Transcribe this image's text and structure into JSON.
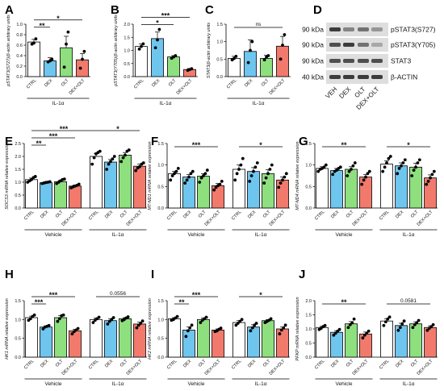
{
  "colors": {
    "CTRL": "#ffffff",
    "DEX": "#6ec6ee",
    "OLT": "#8ee07e",
    "DEX+OLT": "#f27a6c",
    "black": "#000000",
    "blot_bg": "#dedede",
    "band": "#2a2a2a"
  },
  "chart_data": [
    {
      "id": "A",
      "type": "bar",
      "letter": "A",
      "ylabel": "pSTAT3(S727)/β-actin arbitrary units",
      "ylim": [
        0,
        1.0
      ],
      "yticks": [
        0.0,
        0.2,
        0.4,
        0.6,
        0.8,
        1.0
      ],
      "categories": [
        "CTRL",
        "DEX",
        "OLT",
        "DEX+OLT"
      ],
      "values": [
        0.66,
        0.3,
        0.55,
        0.32
      ],
      "errors": [
        0.05,
        0.06,
        0.22,
        0.12
      ],
      "points": [
        [
          0.62,
          0.64,
          0.72
        ],
        [
          0.28,
          0.3,
          0.33
        ],
        [
          0.18,
          0.62,
          0.85
        ],
        [
          0.16,
          0.33,
          0.48
        ]
      ],
      "groups": [
        {
          "label": "IL-1α",
          "from": 0,
          "to": 3
        }
      ],
      "sig": [
        {
          "a": 0,
          "b": 1,
          "text": "**",
          "level": 0
        },
        {
          "a": 0,
          "b": 3,
          "text": "*",
          "level": 1
        }
      ]
    },
    {
      "id": "B",
      "type": "bar",
      "letter": "B",
      "ylabel": "pSTAT3(Y705)/β-actin arbitrary units",
      "ylim": [
        0,
        2.0
      ],
      "yticks": [
        0.0,
        0.5,
        1.0,
        1.5,
        2.0
      ],
      "categories": [
        "CTRL",
        "DEX",
        "OLT",
        "DEX+OLT"
      ],
      "values": [
        1.15,
        1.45,
        0.75,
        0.27
      ],
      "errors": [
        0.1,
        0.25,
        0.05,
        0.04
      ],
      "points": [
        [
          1.05,
          1.15,
          1.25
        ],
        [
          1.1,
          1.4,
          1.8
        ],
        [
          0.7,
          0.75,
          0.8
        ],
        [
          0.24,
          0.27,
          0.3
        ]
      ],
      "groups": [
        {
          "label": "IL-1α",
          "from": 0,
          "to": 3
        }
      ],
      "sig": [
        {
          "a": 0,
          "b": 2,
          "text": "*",
          "level": 0
        },
        {
          "a": 0,
          "b": 3,
          "text": "***",
          "level": 1
        }
      ]
    },
    {
      "id": "C",
      "type": "bar",
      "letter": "C",
      "ylabel": "STAT3/β-actin arbitrary units",
      "ylim": [
        0,
        1.5
      ],
      "yticks": [
        0.0,
        0.5,
        1.0,
        1.5
      ],
      "categories": [
        "CTRL",
        "DEX",
        "OLT",
        "DEX+OLT"
      ],
      "values": [
        0.52,
        0.72,
        0.52,
        0.87
      ],
      "errors": [
        0.06,
        0.33,
        0.09,
        0.28
      ],
      "points": [
        [
          0.48,
          0.52,
          0.58
        ],
        [
          0.4,
          0.75,
          1.0
        ],
        [
          0.48,
          0.56,
          0.6
        ],
        [
          0.5,
          0.9,
          1.2
        ]
      ],
      "groups": [
        {
          "label": "IL-1α",
          "from": 0,
          "to": 3
        }
      ],
      "sig": [
        {
          "a": 0,
          "b": 3,
          "text": "ns",
          "level": 0
        }
      ]
    },
    {
      "id": "E",
      "type": "bar",
      "letter": "E",
      "ylabel": "SOCS3 mRNA relative expression",
      "ylim": [
        0,
        2.5
      ],
      "yticks": [
        0.0,
        0.5,
        1.0,
        1.5,
        2.0,
        2.5
      ],
      "categories": [
        "CTRL",
        "DEX",
        "OLT",
        "DEX+OLT",
        "CTRL",
        "DEX",
        "OLT",
        "DEX+OLT"
      ],
      "values": [
        1.1,
        0.98,
        1.02,
        0.85,
        2.0,
        1.78,
        2.05,
        1.62
      ],
      "errors": [
        0.06,
        0.03,
        0.05,
        0.04,
        0.12,
        0.1,
        0.1,
        0.08
      ],
      "points": [
        [
          1.0,
          1.05,
          1.1,
          1.18,
          1.22
        ],
        [
          0.95,
          0.97,
          0.99,
          1.0,
          1.02
        ],
        [
          0.95,
          1.0,
          1.05,
          1.1,
          1.12
        ],
        [
          0.78,
          0.82,
          0.85,
          0.88,
          0.92
        ],
        [
          1.7,
          1.95,
          2.1,
          2.15,
          2.2
        ],
        [
          1.5,
          1.7,
          1.8,
          1.9,
          2.0
        ],
        [
          1.8,
          1.95,
          2.05,
          2.2,
          2.25
        ],
        [
          1.45,
          1.55,
          1.6,
          1.7,
          1.75
        ]
      ],
      "groups": [
        {
          "label": "Vehicle",
          "from": 0,
          "to": 3
        },
        {
          "label": "IL-1α",
          "from": 4,
          "to": 7
        }
      ],
      "sig": [
        {
          "a": 0,
          "b": 1,
          "text": "**",
          "level": 0
        },
        {
          "a": 0,
          "b": 3,
          "text": "***",
          "level": 1
        },
        {
          "a": 0,
          "b": 4,
          "text": "***",
          "level": 2
        },
        {
          "a": 4,
          "b": 7,
          "text": "*",
          "level": 2
        }
      ]
    },
    {
      "id": "F",
      "type": "bar",
      "letter": "F",
      "ylabel": "MT-ND1 mRNA relative expression",
      "ylim": [
        0,
        1.5
      ],
      "yticks": [
        0.0,
        0.5,
        1.0,
        1.5
      ],
      "categories": [
        "CTRL",
        "DEX",
        "OLT",
        "DEX+OLT",
        "CTRL",
        "DEX",
        "OLT",
        "DEX+OLT"
      ],
      "values": [
        0.8,
        0.72,
        0.74,
        0.52,
        0.9,
        0.85,
        0.8,
        0.65
      ],
      "errors": [
        0.05,
        0.06,
        0.06,
        0.05,
        0.1,
        0.09,
        0.09,
        0.07
      ],
      "points": [
        [
          0.65,
          0.75,
          0.8,
          0.85,
          0.92
        ],
        [
          0.58,
          0.65,
          0.72,
          0.8,
          0.85
        ],
        [
          0.6,
          0.7,
          0.75,
          0.8,
          0.88
        ],
        [
          0.42,
          0.48,
          0.52,
          0.55,
          0.62
        ],
        [
          0.65,
          0.8,
          0.9,
          1.0,
          1.15
        ],
        [
          0.62,
          0.75,
          0.85,
          0.95,
          1.05
        ],
        [
          0.58,
          0.7,
          0.8,
          0.9,
          1.0
        ],
        [
          0.48,
          0.58,
          0.65,
          0.72,
          0.8
        ]
      ],
      "groups": [
        {
          "label": "Vehicle",
          "from": 0,
          "to": 3
        },
        {
          "label": "IL-1α",
          "from": 4,
          "to": 7
        }
      ],
      "sig": [
        {
          "a": 0,
          "b": 3,
          "text": "***",
          "level": 0
        },
        {
          "a": 4,
          "b": 7,
          "text": "*",
          "level": 0
        }
      ]
    },
    {
      "id": "G",
      "type": "bar",
      "letter": "G",
      "ylabel": "MT-ND4 mRNA relative expression",
      "ylim": [
        0,
        1.5
      ],
      "yticks": [
        0.0,
        0.5,
        1.0,
        1.5
      ],
      "categories": [
        "CTRL",
        "DEX",
        "OLT",
        "DEX+OLT",
        "CTRL",
        "DEX",
        "OLT",
        "DEX+OLT"
      ],
      "values": [
        0.92,
        0.87,
        0.9,
        0.72,
        1.02,
        0.98,
        0.95,
        0.7
      ],
      "errors": [
        0.04,
        0.05,
        0.06,
        0.06,
        0.08,
        0.07,
        0.09,
        0.07
      ],
      "points": [
        [
          0.85,
          0.9,
          0.92,
          0.95,
          1.0
        ],
        [
          0.78,
          0.85,
          0.88,
          0.92,
          0.95
        ],
        [
          0.75,
          0.85,
          0.9,
          0.98,
          1.05
        ],
        [
          0.55,
          0.65,
          0.72,
          0.8,
          0.85
        ],
        [
          0.85,
          0.95,
          1.05,
          1.15,
          1.2
        ],
        [
          0.8,
          0.92,
          0.98,
          1.05,
          1.12
        ],
        [
          0.75,
          0.88,
          0.95,
          1.05,
          1.12
        ],
        [
          0.55,
          0.62,
          0.7,
          0.78,
          0.85
        ]
      ],
      "groups": [
        {
          "label": "Vehicle",
          "from": 0,
          "to": 3
        },
        {
          "label": "IL-1α",
          "from": 4,
          "to": 7
        }
      ],
      "sig": [
        {
          "a": 0,
          "b": 3,
          "text": "**",
          "level": 0
        },
        {
          "a": 4,
          "b": 7,
          "text": "*",
          "level": 0
        }
      ]
    },
    {
      "id": "H",
      "type": "bar",
      "letter": "H",
      "ylabel": "HK1 mRNA relative expression",
      "ylim": [
        0,
        1.5
      ],
      "yticks": [
        0.0,
        0.5,
        1.0,
        1.5
      ],
      "categories": [
        "CTRL",
        "DEX",
        "OLT",
        "DEX+OLT",
        "CTRL",
        "DEX",
        "OLT",
        "DEX+OLT"
      ],
      "values": [
        1.05,
        0.8,
        1.05,
        0.7,
        1.0,
        0.97,
        1.02,
        0.88
      ],
      "errors": [
        0.04,
        0.03,
        0.05,
        0.04,
        0.04,
        0.05,
        0.03,
        0.05
      ],
      "points": [
        [
          0.98,
          1.02,
          1.08,
          1.12
        ],
        [
          0.75,
          0.8,
          0.82,
          0.84
        ],
        [
          0.95,
          1.02,
          1.1,
          1.12
        ],
        [
          0.62,
          0.68,
          0.72,
          0.76
        ],
        [
          0.92,
          0.98,
          1.02,
          1.06
        ],
        [
          0.88,
          0.95,
          1.0,
          1.05
        ],
        [
          0.97,
          1.0,
          1.04,
          1.07
        ],
        [
          0.78,
          0.85,
          0.9,
          0.96
        ]
      ],
      "groups": [
        {
          "label": "Vehicle",
          "from": 0,
          "to": 3
        },
        {
          "label": "IL-1α",
          "from": 4,
          "to": 7
        }
      ],
      "sig": [
        {
          "a": 0,
          "b": 1,
          "text": "***",
          "level": 0
        },
        {
          "a": 0,
          "b": 3,
          "text": "***",
          "level": 1
        },
        {
          "a": 4,
          "b": 7,
          "text": "0.0556",
          "level": 1
        }
      ]
    },
    {
      "id": "I",
      "type": "bar",
      "letter": "I",
      "ylabel": "HK2 mRNA relative expression",
      "ylim": [
        0,
        1.5
      ],
      "yticks": [
        0.0,
        0.5,
        1.0,
        1.5
      ],
      "categories": [
        "CTRL",
        "DEX",
        "OLT",
        "DEX+OLT",
        "CTRL",
        "DEX",
        "OLT",
        "DEX+OLT"
      ],
      "values": [
        1.02,
        0.72,
        1.0,
        0.72,
        0.92,
        0.8,
        0.97,
        0.75
      ],
      "errors": [
        0.03,
        0.08,
        0.04,
        0.03,
        0.05,
        0.06,
        0.03,
        0.05
      ],
      "points": [
        [
          0.98,
          1.0,
          1.04,
          1.08
        ],
        [
          0.55,
          0.7,
          0.78,
          0.85
        ],
        [
          0.92,
          0.98,
          1.02,
          1.06
        ],
        [
          0.68,
          0.7,
          0.74,
          0.77
        ],
        [
          0.85,
          0.9,
          0.95,
          1.0
        ],
        [
          0.7,
          0.78,
          0.85,
          0.9
        ],
        [
          0.92,
          0.95,
          0.98,
          1.02
        ],
        [
          0.62,
          0.72,
          0.78,
          0.85
        ]
      ],
      "groups": [
        {
          "label": "Vehicle",
          "from": 0,
          "to": 3
        },
        {
          "label": "IL-1α",
          "from": 4,
          "to": 7
        }
      ],
      "sig": [
        {
          "a": 0,
          "b": 1,
          "text": "**",
          "level": 0
        },
        {
          "a": 0,
          "b": 3,
          "text": "***",
          "level": 1
        },
        {
          "a": 4,
          "b": 7,
          "text": "*",
          "level": 1
        }
      ]
    },
    {
      "id": "J",
      "type": "bar",
      "letter": "J",
      "ylabel": "PFKP mRNA relative expression",
      "ylim": [
        0,
        2.0
      ],
      "yticks": [
        0.0,
        0.5,
        1.0,
        1.5,
        2.0
      ],
      "categories": [
        "CTRL",
        "DEX",
        "OLT",
        "DEX+OLT",
        "CTRL",
        "DEX",
        "OLT",
        "DEX+OLT"
      ],
      "values": [
        1.05,
        0.88,
        1.18,
        0.82,
        1.28,
        1.12,
        1.18,
        1.05
      ],
      "errors": [
        0.04,
        0.06,
        0.08,
        0.07,
        0.08,
        0.08,
        0.07,
        0.06
      ],
      "points": [
        [
          0.98,
          1.02,
          1.08,
          1.12
        ],
        [
          0.78,
          0.85,
          0.92,
          0.98
        ],
        [
          1.05,
          1.15,
          1.22,
          1.35
        ],
        [
          0.68,
          0.78,
          0.85,
          0.92
        ],
        [
          1.12,
          1.25,
          1.35,
          1.42
        ],
        [
          0.95,
          1.05,
          1.18,
          1.28
        ],
        [
          1.05,
          1.15,
          1.22,
          1.3
        ],
        [
          0.95,
          1.02,
          1.08,
          1.15
        ]
      ],
      "groups": [
        {
          "label": "Vehicle",
          "from": 0,
          "to": 3
        },
        {
          "label": "IL-1α",
          "from": 4,
          "to": 7
        }
      ],
      "sig": [
        {
          "a": 0,
          "b": 3,
          "text": "**",
          "level": 0
        },
        {
          "a": 4,
          "b": 7,
          "text": "0.0581",
          "level": 0
        }
      ]
    }
  ],
  "blot": {
    "letter": "D",
    "rows": [
      {
        "kda": "90 kDa",
        "name": "pSTAT3(S727)",
        "intensity": [
          0.9,
          0.5,
          0.6,
          0.4
        ]
      },
      {
        "kda": "90 kDa",
        "name": "pSTAT3(Y705)",
        "intensity": [
          0.8,
          0.9,
          0.6,
          0.3
        ]
      },
      {
        "kda": "90 kDa",
        "name": "STAT3",
        "intensity": [
          0.8,
          0.8,
          0.8,
          0.8
        ]
      },
      {
        "kda": "40 kDa",
        "name": "β-ACTIN",
        "intensity": [
          0.9,
          0.9,
          0.9,
          0.9
        ]
      }
    ],
    "lanes": [
      "VEH",
      "DEX",
      "OLT",
      "DEX+OLT"
    ]
  }
}
